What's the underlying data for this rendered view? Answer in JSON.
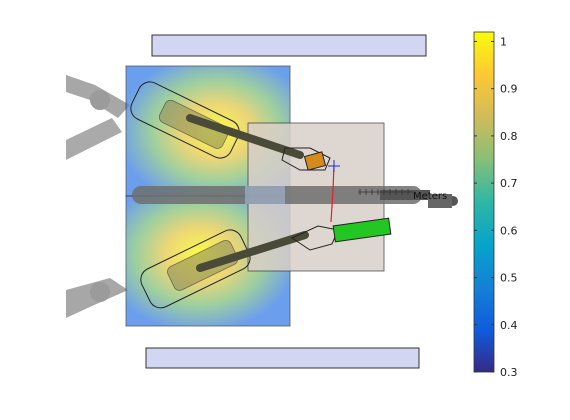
{
  "figure": {
    "overlay_text": "Meters",
    "colorbar": {
      "colormap": "parula",
      "min": 0.3,
      "max": 1.02,
      "ticks": [
        {
          "value": 1.0,
          "label": "1"
        },
        {
          "value": 0.9,
          "label": "0.9"
        },
        {
          "value": 0.8,
          "label": "0.8"
        },
        {
          "value": 0.7,
          "label": "0.7"
        },
        {
          "value": 0.6,
          "label": "0.6"
        },
        {
          "value": 0.5,
          "label": "0.5"
        },
        {
          "value": 0.4,
          "label": "0.4"
        },
        {
          "value": 0.3,
          "label": "0.3"
        }
      ],
      "stops": [
        "#352a87",
        "#0f5cdd",
        "#1481d6",
        "#06a4ca",
        "#2eb7a4",
        "#87bf77",
        "#d1bb59",
        "#fec832",
        "#f9fb0e"
      ]
    },
    "colors": {
      "panel_fill": "#d3d6f2",
      "workspace_fill": "#d9cfc8",
      "gripper_green": "#23c623",
      "gripper_orange": "#d58a1c",
      "trajectory_red": "#e0202a",
      "robot_gray": "#8a8a8a"
    }
  }
}
